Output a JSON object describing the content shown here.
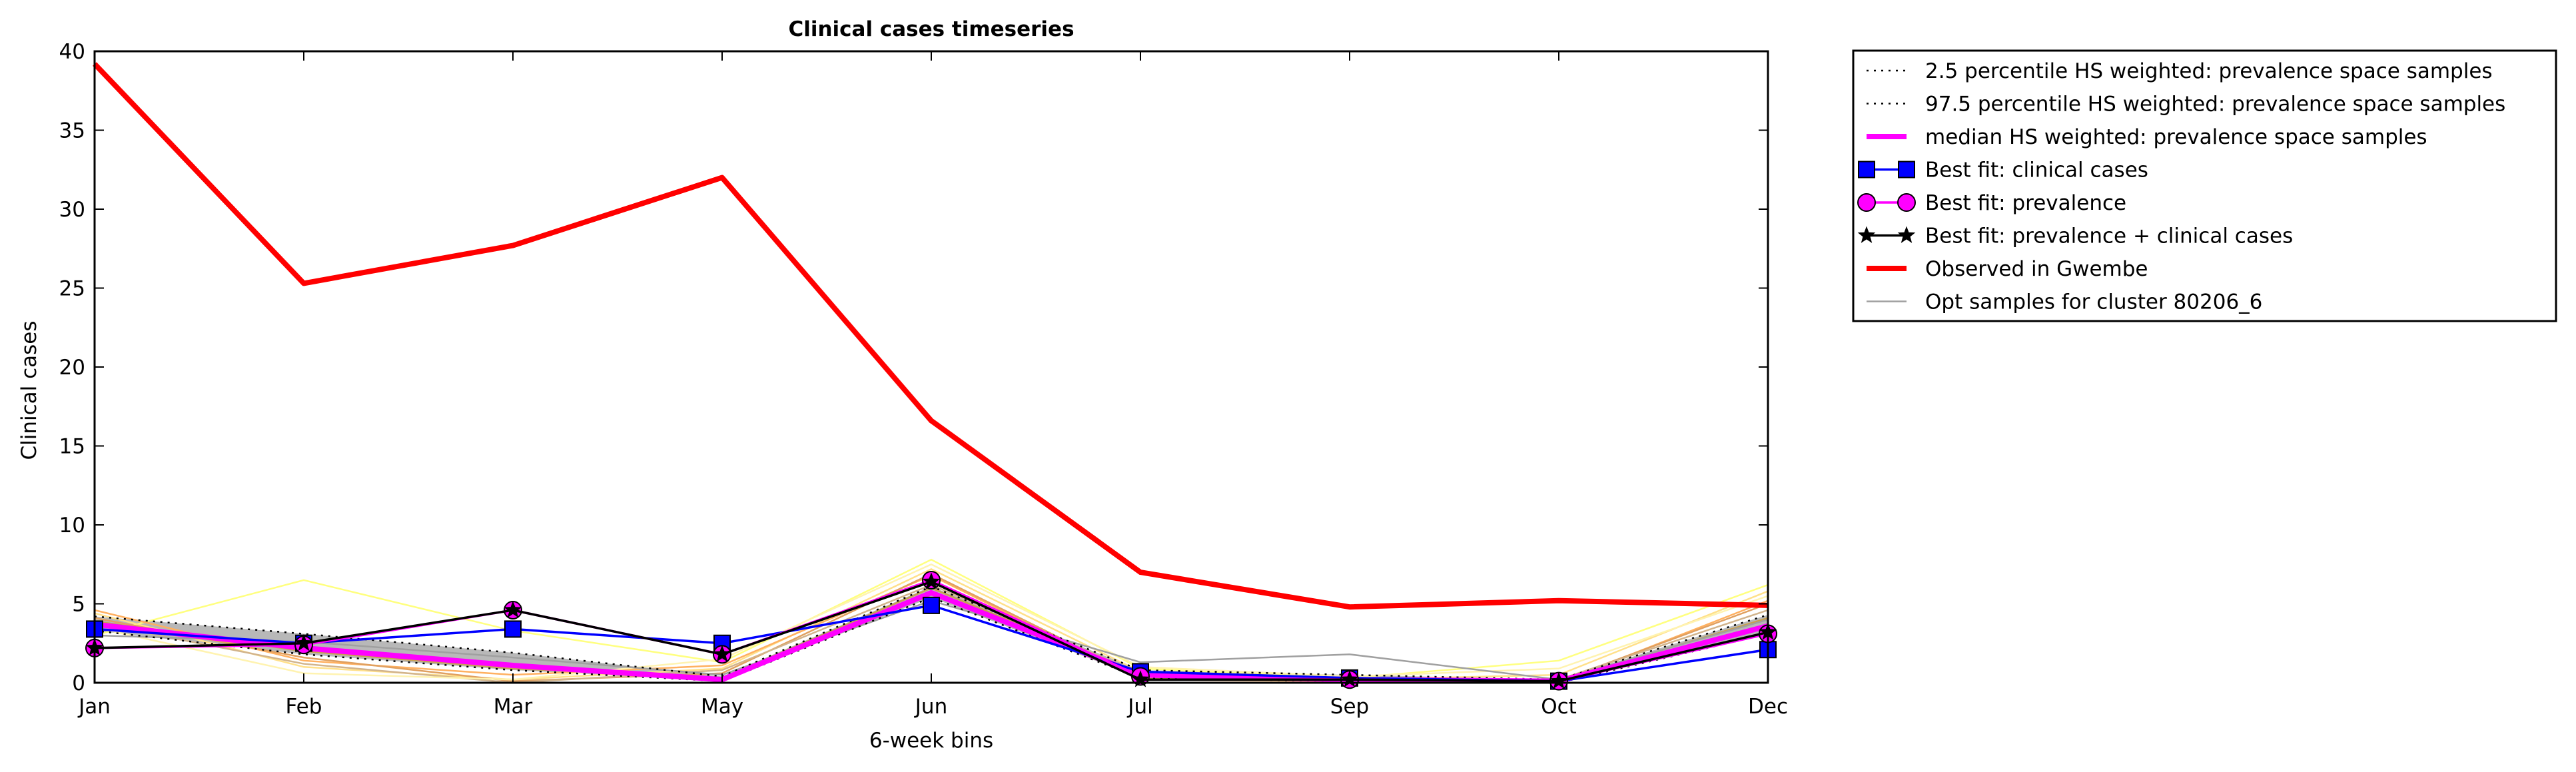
{
  "chart_data": {
    "type": "line",
    "title": "Clinical cases timeseries",
    "xlabel": "6-week bins",
    "ylabel": "Clinical cases",
    "categories": [
      "Jan",
      "Feb",
      "Mar",
      "May",
      "Jun",
      "Jul",
      "Sep",
      "Oct",
      "Dec"
    ],
    "ylim": [
      0,
      40
    ],
    "yticks": [
      "0",
      "5",
      "10",
      "15",
      "20",
      "25",
      "30",
      "35",
      "40"
    ],
    "grid": false,
    "legend_position": "outside-top-right",
    "colors": {
      "observed": "#ff0000",
      "median": "#ff00ff",
      "best_clinical": "#0000ff",
      "best_prevalence": "#ff00ff",
      "best_both": "#000000",
      "band": "#b0b0b0",
      "opt_samples": "#a0a0a0"
    },
    "series": [
      {
        "name": "2.5 percentile HS weighted: prevalence space samples",
        "style": "dotted",
        "values": [
          3.3,
          1.8,
          0.8,
          0.1,
          5.4,
          0.3,
          0.1,
          0.0,
          3.1
        ]
      },
      {
        "name": "97.5 percentile HS weighted: prevalence space samples",
        "style": "dotted",
        "values": [
          4.2,
          3.1,
          1.9,
          0.4,
          6.1,
          0.8,
          0.5,
          0.2,
          4.3
        ]
      },
      {
        "name": "median HS weighted: prevalence space samples",
        "style": "solid",
        "values": [
          3.7,
          2.2,
          1.1,
          0.2,
          5.7,
          0.5,
          0.2,
          0.1,
          3.6
        ]
      },
      {
        "name": "Best fit: clinical cases",
        "marker": "square",
        "values": [
          3.4,
          2.5,
          3.4,
          2.5,
          4.9,
          0.7,
          0.3,
          0.1,
          2.1
        ]
      },
      {
        "name": "Best fit: prevalence",
        "marker": "circle",
        "values": [
          2.2,
          2.4,
          4.6,
          1.8,
          6.5,
          0.4,
          0.2,
          0.1,
          3.1
        ]
      },
      {
        "name": "Best fit: prevalence + clinical cases",
        "marker": "star",
        "values": [
          2.2,
          2.5,
          4.6,
          1.8,
          6.4,
          0.2,
          0.2,
          0.1,
          3.2
        ]
      },
      {
        "name": "Observed in Gwembe",
        "style": "thick",
        "values": [
          39.2,
          25.3,
          27.7,
          32.0,
          16.6,
          7.0,
          4.8,
          5.2,
          4.9
        ]
      },
      {
        "name": "Opt samples for cluster 80206_6",
        "style": "thin",
        "values": [
          3.0,
          2.6,
          1.6,
          0.5,
          5.2,
          1.3,
          1.8,
          0.2,
          4.0
        ]
      }
    ],
    "extra_samples": [
      {
        "color": "#ffff80",
        "values": [
          3.0,
          6.5,
          3.3,
          1.3,
          7.8,
          0.9,
          0.3,
          1.4,
          6.2
        ]
      },
      {
        "color": "#ffe08a",
        "values": [
          4.4,
          1.0,
          0.2,
          0.9,
          7.2,
          0.7,
          0.2,
          0.5,
          5.8
        ]
      },
      {
        "color": "#ffb060",
        "values": [
          4.6,
          1.4,
          0.5,
          1.1,
          6.8,
          0.2,
          0.1,
          0.0,
          5.2
        ]
      },
      {
        "color": "#e0a060",
        "values": [
          4.1,
          1.6,
          0.1,
          0.6,
          6.9,
          0.3,
          0.1,
          0.1,
          5.0
        ]
      },
      {
        "color": "#d2b48c",
        "values": [
          3.8,
          1.2,
          0.0,
          0.8,
          6.2,
          0.6,
          0.1,
          0.2,
          4.6
        ]
      },
      {
        "color": "#fff3b0",
        "values": [
          3.5,
          0.6,
          0.2,
          1.5,
          7.5,
          1.0,
          0.4,
          0.9,
          5.5
        ]
      },
      {
        "color": "#c8a050",
        "values": [
          3.9,
          2.0,
          0.9,
          0.3,
          6.0,
          0.5,
          0.2,
          0.1,
          4.1
        ]
      }
    ]
  }
}
